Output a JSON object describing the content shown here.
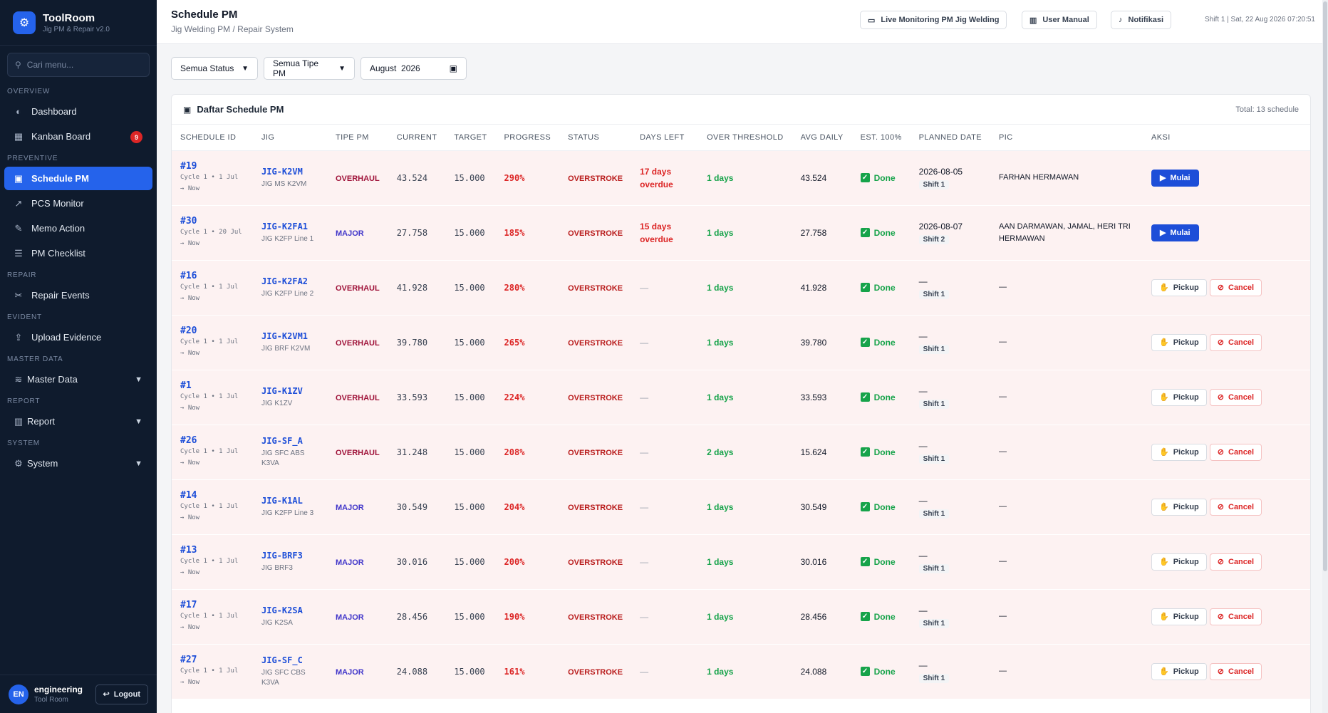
{
  "brand": {
    "name": "ToolRoom",
    "subtitle": "Jig PM & Repair v2.0",
    "icon": "gears-icon"
  },
  "sidebar": {
    "search_placeholder": "Cari menu...",
    "sections": {
      "overview": "OVERVIEW",
      "preventive": "PREVENTIVE",
      "repair": "REPAIR",
      "evident": "EVIDENT",
      "master": "MASTER DATA",
      "report": "REPORT",
      "system": "SYSTEM"
    },
    "items": {
      "dashboard": "Dashboard",
      "kanban": "Kanban Board",
      "kanban_badge": "9",
      "schedule": "Schedule PM",
      "pcs": "PCS Monitor",
      "memo": "Memo Action",
      "checklist": "PM Checklist",
      "repair_events": "Repair Events",
      "upload": "Upload Evidence",
      "master": "Master Data",
      "report": "Report",
      "system": "System"
    },
    "active": "schedule"
  },
  "user": {
    "initials": "EN",
    "name": "engineering",
    "role": "Tool Room",
    "logout": "Logout"
  },
  "header": {
    "title": "Schedule PM",
    "subtitle": "Jig Welding PM / Repair System",
    "live_label": "Live Monitoring PM Jig Welding",
    "manual_label": "User Manual",
    "notif_label": "Notifikasi",
    "shift_info": "Shift 1 | Sat, 22 Aug 2026 07:20:51"
  },
  "filters": {
    "status": "Semua Status",
    "tipe": "Semua Tipe PM",
    "month": "August  2026"
  },
  "table": {
    "title": "Daftar Schedule PM",
    "total": "Total: 13 schedule",
    "columns": [
      "SCHEDULE ID",
      "JIG",
      "TIPE PM",
      "CURRENT",
      "TARGET",
      "PROGRESS",
      "STATUS",
      "DAYS LEFT",
      "OVER THRESHOLD",
      "AVG DAILY",
      "EST. 100%",
      "PLANNED DATE",
      "PIC",
      "AKSI"
    ],
    "rows": [
      {
        "id": "#19",
        "cycle": "Cycle 1 • 1 Jul → Now",
        "jig": "JIG-K2VM",
        "jig_sub": "JIG MS K2VM",
        "tipe": "OVERHAUL",
        "current": "43.524",
        "target": "15.000",
        "progress": "290%",
        "status": "OVERSTROKE",
        "days_left": "17 days overdue",
        "threshold": "1 days",
        "avg": "43.524",
        "est": "Done",
        "planned": "2026-08-05",
        "shift": "Shift 1",
        "pic": "FARHAN HERMAWAN",
        "action": "mulai"
      },
      {
        "id": "#30",
        "cycle": "Cycle 1 • 20 Jul → Now",
        "jig": "JIG-K2FA1",
        "jig_sub": "JIG K2FP Line 1",
        "tipe": "MAJOR",
        "current": "27.758",
        "target": "15.000",
        "progress": "185%",
        "status": "OVERSTROKE",
        "days_left": "15 days overdue",
        "threshold": "1 days",
        "avg": "27.758",
        "est": "Done",
        "planned": "2026-08-07",
        "shift": "Shift 2",
        "pic": "AAN DARMAWAN, JAMAL, HERI TRI HERMAWAN",
        "action": "mulai"
      },
      {
        "id": "#16",
        "cycle": "Cycle 1 • 1 Jul → Now",
        "jig": "JIG-K2FA2",
        "jig_sub": "JIG K2FP Line 2",
        "tipe": "OVERHAUL",
        "current": "41.928",
        "target": "15.000",
        "progress": "280%",
        "status": "OVERSTROKE",
        "days_left": "—",
        "threshold": "1 days",
        "avg": "41.928",
        "est": "Done",
        "planned": "—",
        "shift": "Shift 1",
        "pic": "—",
        "action": "pickup"
      },
      {
        "id": "#20",
        "cycle": "Cycle 1 • 1 Jul → Now",
        "jig": "JIG-K2VM1",
        "jig_sub": "JIG BRF K2VM",
        "tipe": "OVERHAUL",
        "current": "39.780",
        "target": "15.000",
        "progress": "265%",
        "status": "OVERSTROKE",
        "days_left": "—",
        "threshold": "1 days",
        "avg": "39.780",
        "est": "Done",
        "planned": "—",
        "shift": "Shift 1",
        "pic": "—",
        "action": "pickup"
      },
      {
        "id": "#1",
        "cycle": "Cycle 1 • 1 Jul → Now",
        "jig": "JIG-K1ZV",
        "jig_sub": "JIG K1ZV",
        "tipe": "OVERHAUL",
        "current": "33.593",
        "target": "15.000",
        "progress": "224%",
        "status": "OVERSTROKE",
        "days_left": "—",
        "threshold": "1 days",
        "avg": "33.593",
        "est": "Done",
        "planned": "—",
        "shift": "Shift 1",
        "pic": "—",
        "action": "pickup"
      },
      {
        "id": "#26",
        "cycle": "Cycle 1 • 1 Jul → Now",
        "jig": "JIG-SF_A",
        "jig_sub": "JIG SFC ABS K3VA",
        "tipe": "OVERHAUL",
        "current": "31.248",
        "target": "15.000",
        "progress": "208%",
        "status": "OVERSTROKE",
        "days_left": "—",
        "threshold": "2 days",
        "avg": "15.624",
        "est": "Done",
        "planned": "—",
        "shift": "Shift 1",
        "pic": "—",
        "action": "pickup"
      },
      {
        "id": "#14",
        "cycle": "Cycle 1 • 1 Jul → Now",
        "jig": "JIG-K1AL",
        "jig_sub": "JIG K2FP Line 3",
        "tipe": "MAJOR",
        "current": "30.549",
        "target": "15.000",
        "progress": "204%",
        "status": "OVERSTROKE",
        "days_left": "—",
        "threshold": "1 days",
        "avg": "30.549",
        "est": "Done",
        "planned": "—",
        "shift": "Shift 1",
        "pic": "—",
        "action": "pickup"
      },
      {
        "id": "#13",
        "cycle": "Cycle 1 • 1 Jul → Now",
        "jig": "JIG-BRF3",
        "jig_sub": "JIG BRF3",
        "tipe": "MAJOR",
        "current": "30.016",
        "target": "15.000",
        "progress": "200%",
        "status": "OVERSTROKE",
        "days_left": "—",
        "threshold": "1 days",
        "avg": "30.016",
        "est": "Done",
        "planned": "—",
        "shift": "Shift 1",
        "pic": "—",
        "action": "pickup"
      },
      {
        "id": "#17",
        "cycle": "Cycle 1 • 1 Jul → Now",
        "jig": "JIG-K2SA",
        "jig_sub": "JIG K2SA",
        "tipe": "MAJOR",
        "current": "28.456",
        "target": "15.000",
        "progress": "190%",
        "status": "OVERSTROKE",
        "days_left": "—",
        "threshold": "1 days",
        "avg": "28.456",
        "est": "Done",
        "planned": "—",
        "shift": "Shift 1",
        "pic": "—",
        "action": "pickup"
      },
      {
        "id": "#27",
        "cycle": "Cycle 1 • 1 Jul → Now",
        "jig": "JIG-SF_C",
        "jig_sub": "JIG SFC CBS K3VA",
        "tipe": "MAJOR",
        "current": "24.088",
        "target": "15.000",
        "progress": "161%",
        "status": "OVERSTROKE",
        "days_left": "—",
        "threshold": "1 days",
        "avg": "24.088",
        "est": "Done",
        "planned": "—",
        "shift": "Shift 1",
        "pic": "—",
        "action": "pickup"
      }
    ],
    "btn_mulai": "Mulai",
    "btn_pickup": "Pickup",
    "btn_cancel": "Cancel"
  },
  "colors": {
    "accent": "#2563eb",
    "sidebar_bg": "#0f1b2d",
    "row_bg": "#fdf2f2",
    "danger": "#dc2626",
    "success": "#16a34a"
  }
}
